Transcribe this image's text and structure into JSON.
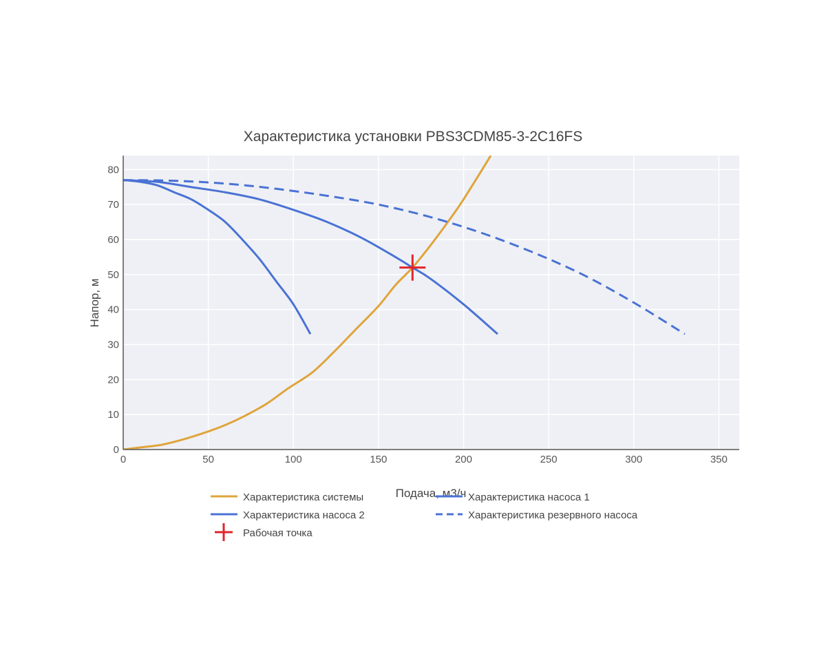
{
  "chart_data": {
    "type": "line",
    "title": "Характеристика установки PBS3CDM85-3-2C16FS",
    "xlabel": "Подача, м3/ч",
    "ylabel": "Напор, м",
    "xlim": [
      0,
      362
    ],
    "ylim": [
      0,
      84
    ],
    "xticks": [
      0,
      50,
      100,
      150,
      200,
      250,
      300,
      350
    ],
    "yticks": [
      0,
      10,
      20,
      30,
      40,
      50,
      60,
      70,
      80
    ],
    "grid": true,
    "legend_position": "bottom",
    "colors": {
      "plot_bg": "#eef0f5",
      "grid": "#ffffff",
      "system": "#e0a43a",
      "pump": "#4a72d4",
      "working_point": "#e0242b"
    },
    "series": [
      {
        "name": "Характеристика системы",
        "style": "solid",
        "color": "#e0a43a",
        "x": [
          0,
          10,
          23,
          36,
          49,
          60,
          71,
          84,
          97,
          111,
          123,
          136,
          150,
          160,
          170,
          180,
          190,
          200,
          216
        ],
        "y": [
          0,
          0.6,
          1.4,
          3,
          5,
          7,
          9.5,
          13,
          17.5,
          22,
          27.5,
          34,
          41,
          47,
          52,
          58,
          64.5,
          71.5,
          84
        ]
      },
      {
        "name": "Характеристика насоса 1",
        "style": "solid",
        "color": "#4a72d4",
        "x": [
          0,
          10,
          20,
          30,
          40,
          50,
          60,
          70,
          80,
          90,
          100,
          110
        ],
        "y": [
          77,
          76.5,
          75.5,
          73.5,
          71.5,
          68.5,
          65,
          60,
          54.5,
          48,
          41.5,
          33
        ]
      },
      {
        "name": "Характеристика насоса 2",
        "style": "solid",
        "color": "#4a72d4",
        "x": [
          0,
          20,
          40,
          60,
          80,
          100,
          120,
          140,
          160,
          170,
          180,
          200,
          220
        ],
        "y": [
          77,
          76.5,
          75,
          73.5,
          71.5,
          68.5,
          65,
          60.5,
          55,
          52,
          49,
          41.5,
          33
        ]
      },
      {
        "name": "Характеристика резервного насоса",
        "style": "dash",
        "color": "#4a72d4",
        "x": [
          0,
          30,
          60,
          90,
          120,
          150,
          180,
          210,
          240,
          270,
          300,
          330
        ],
        "y": [
          77,
          76.8,
          76,
          74.5,
          72.5,
          70,
          66.5,
          62,
          56.5,
          50,
          42,
          33
        ]
      }
    ],
    "working_point": {
      "name": "Рабочая точка",
      "x": 170,
      "y": 52,
      "color": "#e0242b"
    }
  }
}
